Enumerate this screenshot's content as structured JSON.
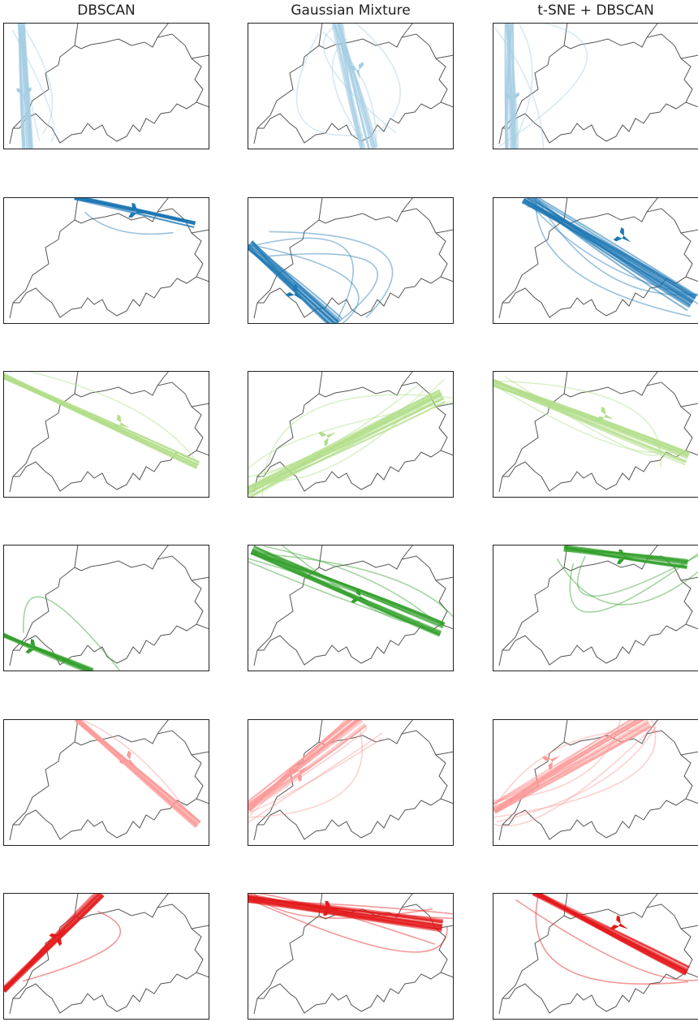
{
  "columns": [
    "DBSCAN",
    "Gaussian Mixture",
    "t-SNE + DBSCAN"
  ],
  "cluster_colors": [
    "#a6cee3",
    "#1f78b4",
    "#b2df8a",
    "#33a02c",
    "#fb9a99",
    "#e31a1c"
  ],
  "map": {
    "region": "Switzerland",
    "border_color": "#555555",
    "frame_color": "#222222"
  }
}
